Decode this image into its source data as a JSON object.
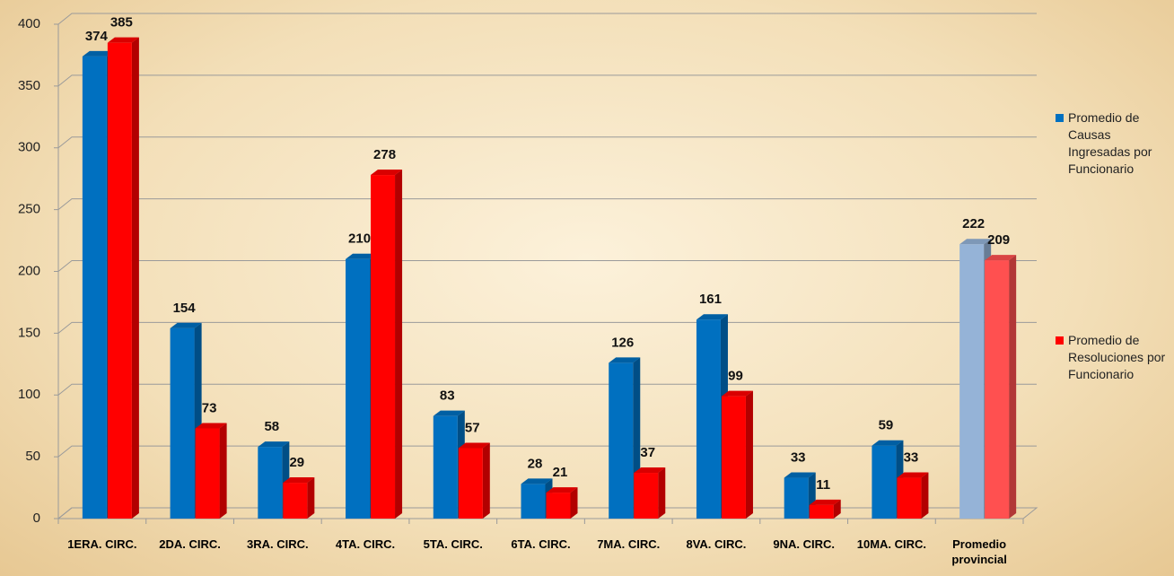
{
  "chart_data": {
    "type": "bar",
    "categories": [
      "1ERA. CIRC.",
      "2DA. CIRC.",
      "3RA. CIRC.",
      "4TA. CIRC.",
      "5TA. CIRC.",
      "6TA. CIRC.",
      "7MA. CIRC.",
      "8VA. CIRC.",
      "9NA. CIRC.",
      "10MA. CIRC.",
      "Promedio provincial"
    ],
    "series": [
      {
        "name": "Promedio de Causas Ingresadas por Funcionario",
        "color": "#0070c0",
        "colors": [
          "#0070c0",
          "#0070c0",
          "#0070c0",
          "#0070c0",
          "#0070c0",
          "#0070c0",
          "#0070c0",
          "#0070c0",
          "#0070c0",
          "#0070c0",
          "#95b3d7"
        ],
        "values": [
          374,
          154,
          58,
          210,
          83,
          28,
          126,
          161,
          33,
          59,
          222
        ]
      },
      {
        "name": "Promedio de Resoluciones por Funcionario",
        "color": "#ff0000",
        "colors": [
          "#ff0000",
          "#ff0000",
          "#ff0000",
          "#ff0000",
          "#ff0000",
          "#ff0000",
          "#ff0000",
          "#ff0000",
          "#ff0000",
          "#ff0000",
          "#ff5050"
        ],
        "values": [
          385,
          73,
          29,
          278,
          57,
          21,
          37,
          99,
          11,
          33,
          209
        ]
      }
    ],
    "ylim": [
      0,
      400
    ],
    "yticks": [
      0,
      50,
      100,
      150,
      200,
      250,
      300,
      350,
      400
    ],
    "grid": true,
    "legend": "right"
  }
}
